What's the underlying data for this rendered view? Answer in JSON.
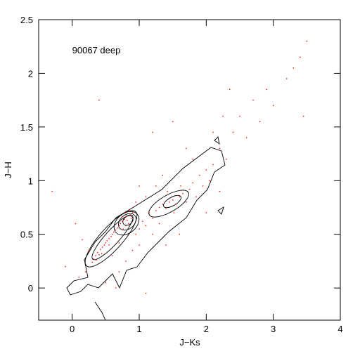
{
  "chart_data": {
    "type": "scatter",
    "annotation": "90067 deep",
    "annotation_x": 0.0,
    "annotation_y": 2.22,
    "xlabel": "J−Ks",
    "ylabel": "J−H",
    "xlim": [
      -0.5,
      4
    ],
    "ylim": [
      -0.3,
      2.5
    ],
    "xticks": [
      0,
      1,
      2,
      3,
      4
    ],
    "yticks": [
      0,
      0.5,
      1,
      1.5,
      2,
      2.5
    ],
    "color": "#ff0000",
    "x": [
      0.32,
      0.35,
      0.38,
      0.4,
      0.42,
      0.45,
      0.48,
      0.5,
      0.52,
      0.55,
      0.58,
      0.6,
      0.62,
      0.65,
      0.68,
      0.7,
      0.72,
      0.75,
      0.78,
      0.8,
      0.82,
      0.84,
      0.86,
      0.88,
      0.8,
      0.76,
      0.74,
      0.9,
      0.85,
      0.79,
      0.3,
      0.36,
      0.44,
      0.55,
      0.25,
      0.2,
      0.6,
      0.7,
      0.95,
      1.0,
      1.05,
      1.1,
      1.15,
      1.2,
      1.25,
      1.3,
      1.35,
      1.4,
      1.45,
      1.5,
      1.55,
      1.6,
      1.65,
      1.7,
      1.52,
      1.42,
      1.62,
      1.75,
      1.8,
      1.85,
      1.9,
      1.95,
      2.0,
      2.05,
      2.1,
      1.3,
      1.2,
      1.0,
      0.9,
      0.8,
      0.7,
      1.1,
      1.0,
      0.95,
      1.25,
      1.35,
      2.2,
      2.3,
      2.4,
      2.5,
      2.6,
      2.7,
      2.8,
      2.9,
      3.0,
      3.2,
      3.3,
      3.4,
      3.5,
      3.45,
      2.35,
      2.25,
      1.7,
      1.5,
      1.2,
      0.4,
      0.15,
      0.1,
      0.05,
      -0.1,
      -0.3,
      0.5,
      0.65,
      1.1,
      1.4,
      1.6,
      2.0,
      2.2,
      1.8,
      2.1
    ],
    "values": [
      0.27,
      0.3,
      0.33,
      0.31,
      0.36,
      0.38,
      0.4,
      0.42,
      0.44,
      0.46,
      0.48,
      0.5,
      0.52,
      0.54,
      0.56,
      0.58,
      0.6,
      0.62,
      0.64,
      0.66,
      0.63,
      0.6,
      0.68,
      0.65,
      0.58,
      0.55,
      0.66,
      0.7,
      0.72,
      0.7,
      0.24,
      0.26,
      0.32,
      0.4,
      0.35,
      0.15,
      0.3,
      0.42,
      0.5,
      0.55,
      0.62,
      0.58,
      0.7,
      0.65,
      0.72,
      0.75,
      0.78,
      0.74,
      0.8,
      0.82,
      0.78,
      0.85,
      0.88,
      0.8,
      0.7,
      0.9,
      0.95,
      0.92,
      0.98,
      0.85,
      1.05,
      0.95,
      1.1,
      1.0,
      1.15,
      0.6,
      0.5,
      0.4,
      0.35,
      0.25,
      0.15,
      0.85,
      0.95,
      0.8,
      0.95,
      1.05,
      1.3,
      1.2,
      1.45,
      1.6,
      1.4,
      1.75,
      1.55,
      1.85,
      1.7,
      1.95,
      2.05,
      2.15,
      2.3,
      1.6,
      1.85,
      1.6,
      1.3,
      1.55,
      1.45,
      1.75,
      0.45,
      0.1,
      0.6,
      0.2,
      0.9,
      0.05,
      0.0,
      -0.05,
      0.4,
      0.5,
      0.7,
      0.9,
      1.2,
      1.45
    ]
  }
}
